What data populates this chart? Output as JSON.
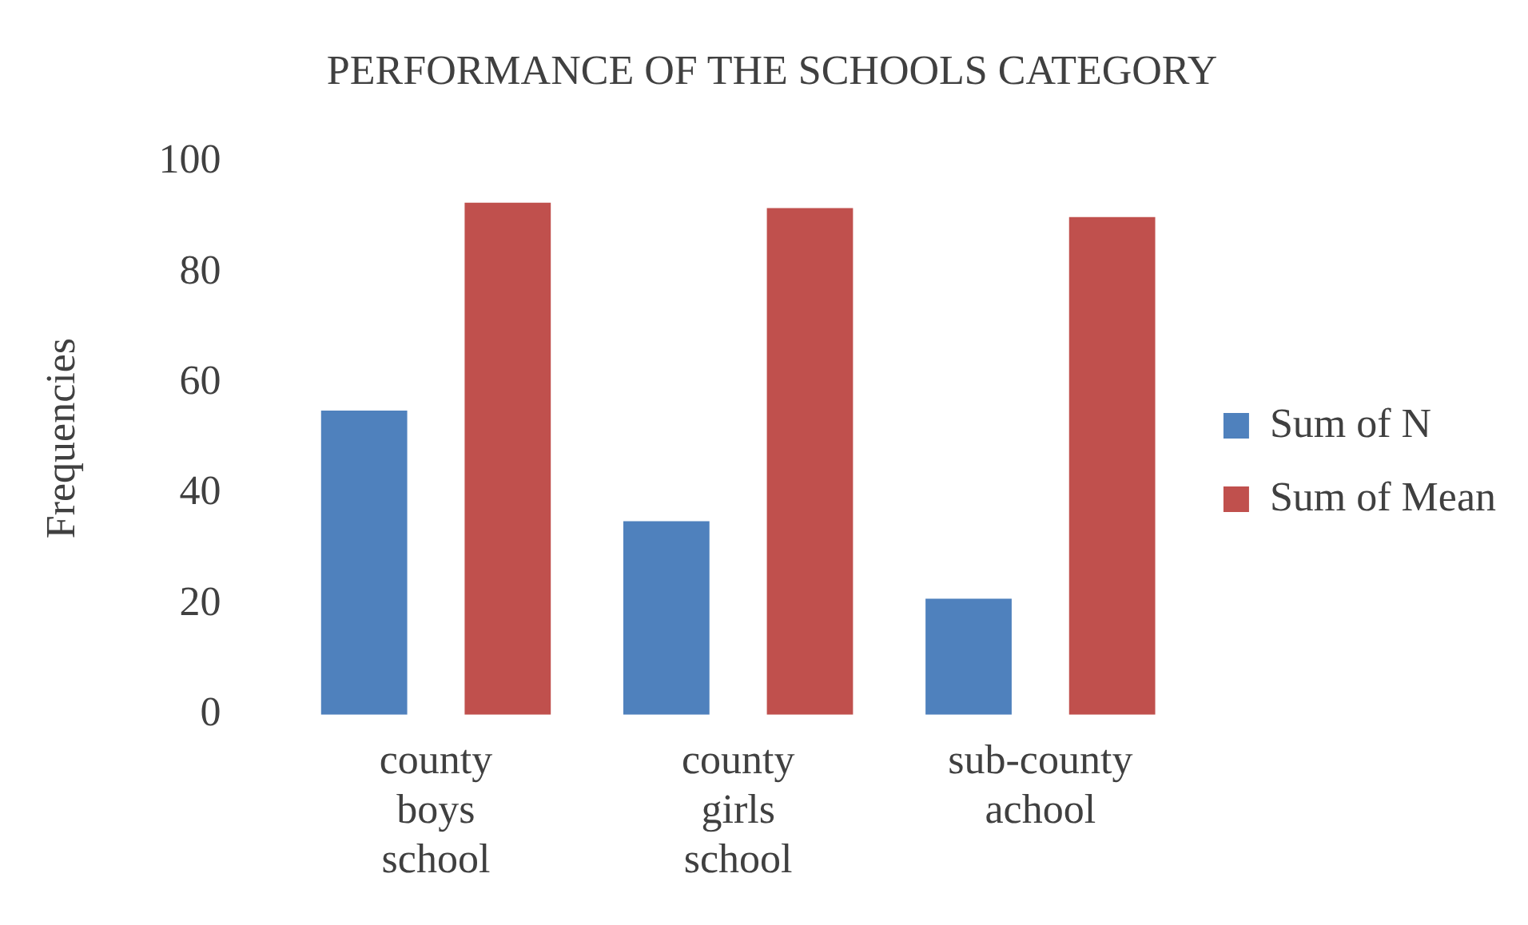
{
  "chart_data": {
    "type": "bar",
    "title": "PERFORMANCE OF THE SCHOOLS CATEGORY",
    "ylabel": "Frequencies",
    "categories": [
      "county boys school",
      "county girls school",
      "sub-county achool"
    ],
    "series": [
      {
        "name": "Sum of N",
        "color": "#4f81bd",
        "values": [
          55,
          35,
          21
        ]
      },
      {
        "name": "Sum of Mean",
        "color": "#c0504d",
        "values": [
          92.6,
          91.6,
          90
        ]
      }
    ],
    "ylim": [
      0,
      100
    ],
    "yticks": [
      0,
      20,
      40,
      60,
      80,
      100
    ],
    "grid": false,
    "legend": "right"
  }
}
